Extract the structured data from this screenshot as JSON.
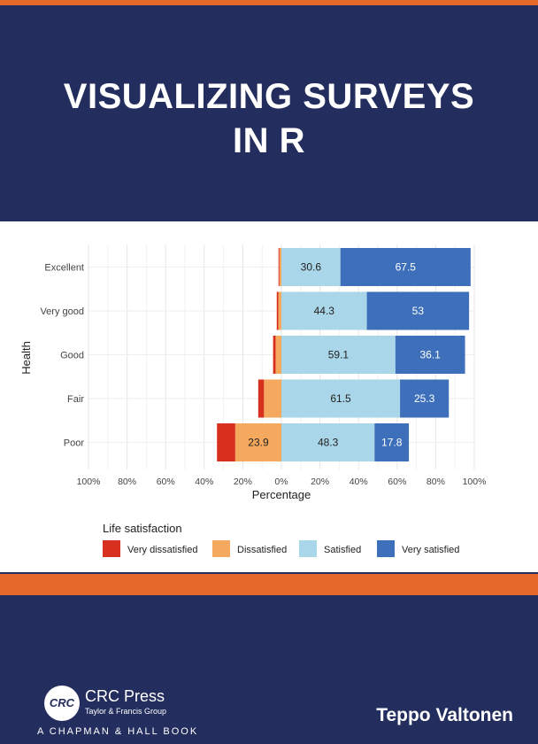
{
  "book": {
    "title_line1": "VISUALIZING SURVEYS",
    "title_line2": "IN R",
    "author": "Teppo Valtonen",
    "publisher": {
      "logo_text": "CRC",
      "name": "CRC Press",
      "group": "Taylor & Francis Group",
      "imprint": "A CHAPMAN & HALL BOOK"
    }
  },
  "colors": {
    "navy": "#232e5e",
    "orange": "#e4692a",
    "very_dissatisfied": "#d7301f",
    "dissatisfied": "#f4a95e",
    "satisfied": "#a9d6e8",
    "very_satisfied": "#3d6fba"
  },
  "chart_data": {
    "type": "bar",
    "orientation": "horizontal-diverging",
    "xlabel": "Percentage",
    "ylabel": "Health",
    "xlim": [
      -100,
      100
    ],
    "x_ticks": [
      -100,
      -80,
      -60,
      -40,
      -20,
      0,
      20,
      40,
      60,
      80,
      100
    ],
    "x_tick_labels": [
      "100%",
      "80%",
      "60%",
      "40%",
      "20%",
      "0%",
      "20%",
      "40%",
      "60%",
      "80%",
      "100%"
    ],
    "categories": [
      "Excellent",
      "Very good",
      "Good",
      "Fair",
      "Poor"
    ],
    "series": [
      {
        "name": "Very dissatisfied",
        "values": [
          0.5,
          0.8,
          1.3,
          3.0,
          9.5
        ],
        "labels": [
          "",
          "",
          "",
          "",
          ""
        ]
      },
      {
        "name": "Dissatisfied",
        "values": [
          1.0,
          1.6,
          3.0,
          9.0,
          23.9
        ],
        "labels": [
          "",
          "",
          "",
          "",
          "23.9"
        ]
      },
      {
        "name": "Satisfied",
        "values": [
          30.6,
          44.3,
          59.1,
          61.5,
          48.3
        ],
        "labels": [
          "30.6",
          "44.3",
          "59.1",
          "61.5",
          "48.3"
        ]
      },
      {
        "name": "Very satisfied",
        "values": [
          67.5,
          53,
          36.1,
          25.3,
          17.8
        ],
        "labels": [
          "67.5",
          "53",
          "36.1",
          "25.3",
          "17.8"
        ]
      }
    ],
    "legend": {
      "title": "Life satisfaction",
      "placement": "bottom"
    },
    "grid": true
  }
}
